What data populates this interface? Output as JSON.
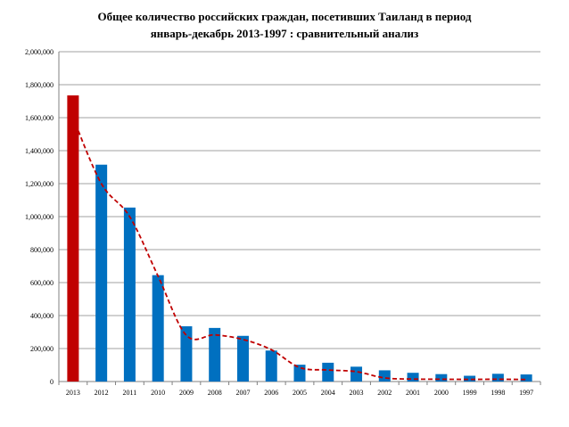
{
  "chart_data": {
    "type": "bar",
    "title_lines": [
      "Общее количество российских граждан, посетивших Таиланд в период",
      "январь-декабрь 2013-1997 : сравнительный анализ"
    ],
    "categories": [
      "2013",
      "2012",
      "2011",
      "2010",
      "2009",
      "2008",
      "2007",
      "2006",
      "2005",
      "2004",
      "2003",
      "2002",
      "2001",
      "2000",
      "1999",
      "1998",
      "1997"
    ],
    "series": [
      {
        "values": [
          1735000,
          1315000,
          1055000,
          645000,
          335000,
          325000,
          277000,
          188000,
          102000,
          114000,
          90000,
          68000,
          53000,
          45000,
          35000,
          47000,
          43000
        ]
      }
    ],
    "trend_line": {
      "style": "dashed",
      "color": "#c00000",
      "values": [
        1600000,
        1200000,
        1000000,
        640000,
        280000,
        283000,
        255000,
        193000,
        85000,
        70000,
        60000,
        22000,
        15000,
        14000,
        13000,
        14000,
        12000
      ]
    },
    "highlight_index": 0,
    "colors": {
      "highlight": "#c00000",
      "bars": "#0070c0",
      "grid": "#808080"
    },
    "ylim": [
      0,
      2000000
    ],
    "yticks": [
      0,
      200000,
      400000,
      600000,
      800000,
      1000000,
      1200000,
      1400000,
      1600000,
      1800000,
      2000000
    ],
    "ytick_labels": [
      "0",
      "200,000",
      "400,000",
      "600,000",
      "800,000",
      "1,000,000",
      "1,200,000",
      "1,400,000",
      "1,600,000",
      "1,800,000",
      "2,000,000"
    ],
    "grid": true,
    "legend": "none"
  }
}
